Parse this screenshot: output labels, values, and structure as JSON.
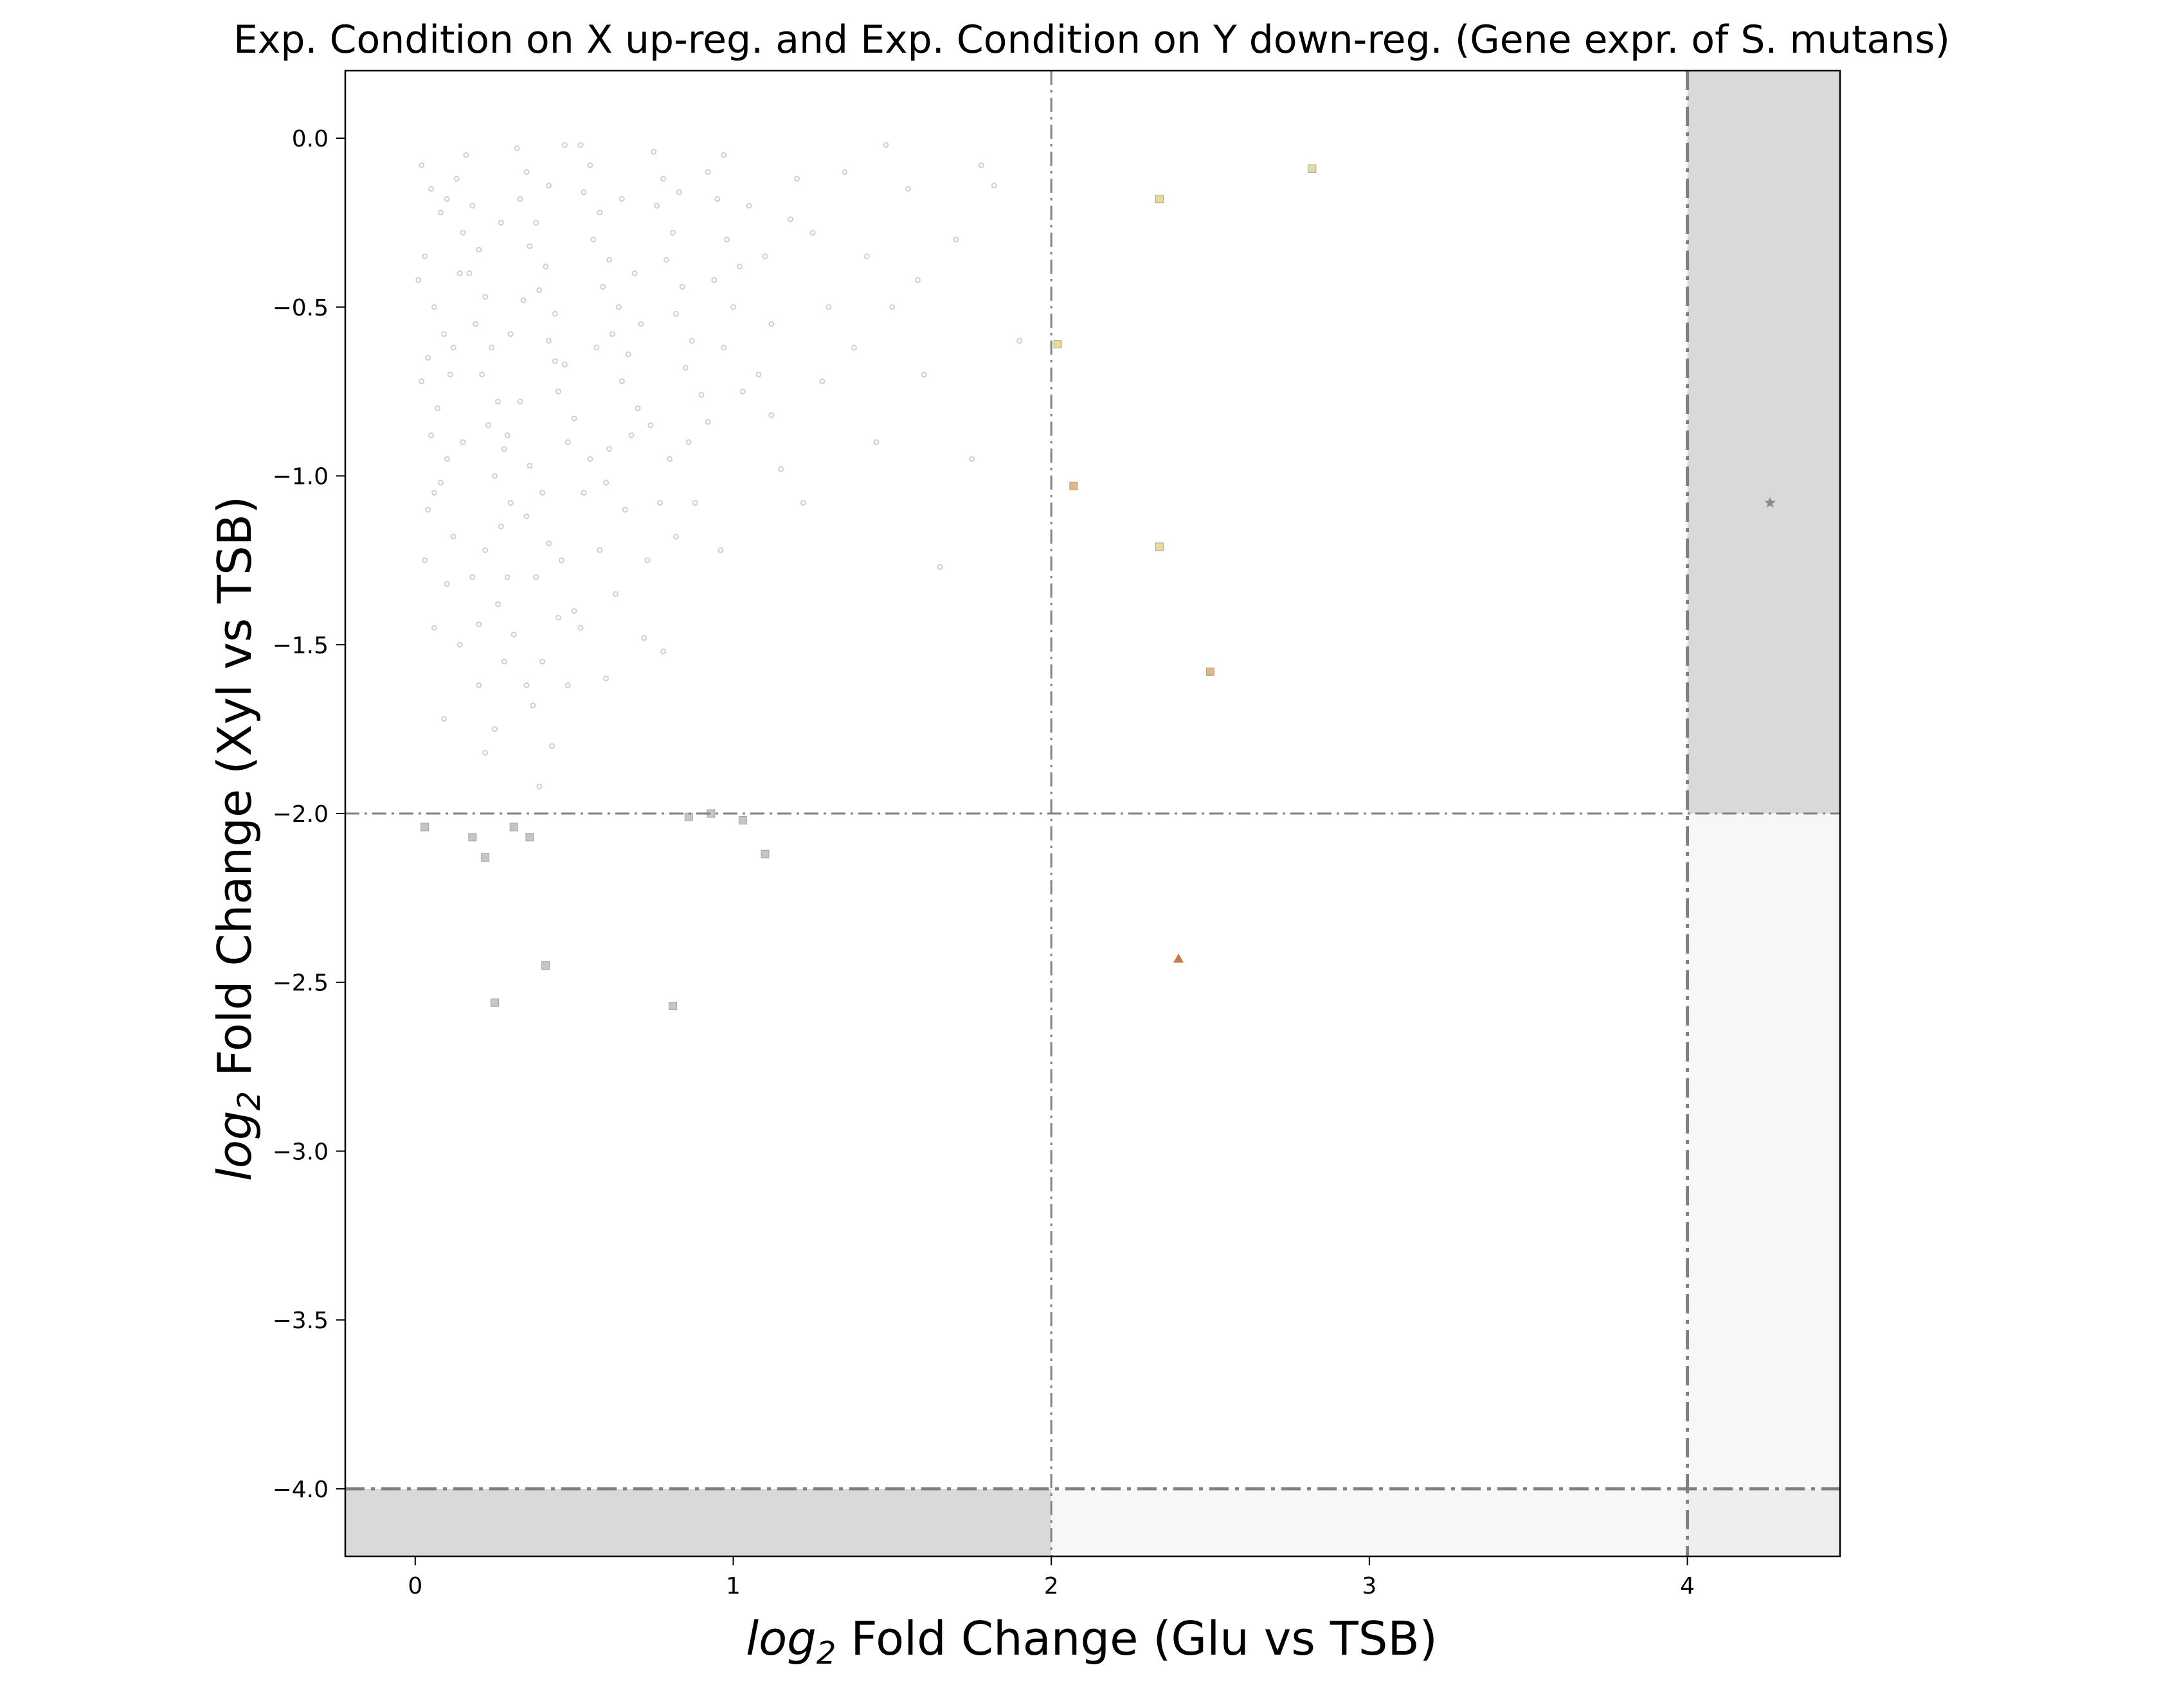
{
  "chart_data": {
    "type": "scatter",
    "title": "Exp. Condition on X up-reg. and Exp. Condition on Y down-reg. (Gene expr. of S. mutans)",
    "xlabel": {
      "prefix": "log",
      "sub": "2",
      "rest": " Fold Change (Glu vs TSB)"
    },
    "ylabel": {
      "prefix": "log",
      "sub": "2",
      "rest": " Fold Change (Xyl vs TSB)"
    },
    "xlim": [
      -0.22,
      4.48
    ],
    "ylim": [
      -4.2,
      0.2
    ],
    "xticks": [
      0,
      1,
      2,
      3,
      4
    ],
    "xtick_labels": [
      "0",
      "1",
      "2",
      "3",
      "4"
    ],
    "yticks": [
      0.0,
      -0.5,
      -1.0,
      -1.5,
      -2.0,
      -2.5,
      -3.0,
      -3.5,
      -4.0
    ],
    "ytick_labels": [
      "0.0",
      "−0.5",
      "−1.0",
      "−1.5",
      "−2.0",
      "−2.5",
      "−3.0",
      "−3.5",
      "−4.0"
    ],
    "grid": false,
    "thresholds": {
      "x_inner": 2,
      "x_outer": 4,
      "y_inner": -2,
      "y_outer": -4
    },
    "shaded_regions": [
      {
        "x": [
          4,
          4.48
        ],
        "y": [
          -2,
          0.2
        ],
        "color": "#d9d9d9"
      },
      {
        "x": [
          4,
          4.48
        ],
        "y": [
          -4,
          -2
        ],
        "color": "#f7f7f7"
      },
      {
        "x": [
          4,
          4.48
        ],
        "y": [
          -4.2,
          -4
        ],
        "color": "#eeeeee"
      },
      {
        "x": [
          -0.22,
          2
        ],
        "y": [
          -4.2,
          -4
        ],
        "color": "#d9d9d9"
      },
      {
        "x": [
          2,
          4
        ],
        "y": [
          -4.2,
          -4
        ],
        "color": "#f7f7f7"
      }
    ],
    "colors": {
      "background_points": "#cfcfcf",
      "gray_squares": "#bfbfbf",
      "yellow_squares": "#e4d98a",
      "orange_squares": "#e0b070",
      "triangle": "#c87a4a",
      "star": "#8a8a8a",
      "dashed_lines": "#808080"
    },
    "series": [
      {
        "marker": "dot",
        "color": "#cfcfcf",
        "points": [
          [
            0.02,
            -0.08
          ],
          [
            0.05,
            -0.15
          ],
          [
            0.08,
            -0.22
          ],
          [
            0.03,
            -0.35
          ],
          [
            0.01,
            -0.42
          ],
          [
            0.06,
            -0.5
          ],
          [
            0.09,
            -0.58
          ],
          [
            0.04,
            -0.65
          ],
          [
            0.02,
            -0.72
          ],
          [
            0.07,
            -0.8
          ],
          [
            0.05,
            -0.88
          ],
          [
            0.1,
            -0.95
          ],
          [
            0.08,
            -1.02
          ],
          [
            0.04,
            -1.1
          ],
          [
            0.12,
            -1.18
          ],
          [
            0.03,
            -1.25
          ],
          [
            0.1,
            -1.32
          ],
          [
            0.06,
            -1.45
          ],
          [
            0.14,
            -1.5
          ],
          [
            0.09,
            -1.72
          ],
          [
            0.16,
            -0.05
          ],
          [
            0.13,
            -0.12
          ],
          [
            0.18,
            -0.2
          ],
          [
            0.15,
            -0.28
          ],
          [
            0.2,
            -0.33
          ],
          [
            0.17,
            -0.4
          ],
          [
            0.22,
            -0.47
          ],
          [
            0.19,
            -0.55
          ],
          [
            0.24,
            -0.62
          ],
          [
            0.21,
            -0.7
          ],
          [
            0.26,
            -0.78
          ],
          [
            0.23,
            -0.85
          ],
          [
            0.28,
            -0.92
          ],
          [
            0.25,
            -1.0
          ],
          [
            0.3,
            -1.08
          ],
          [
            0.27,
            -1.15
          ],
          [
            0.22,
            -1.22
          ],
          [
            0.29,
            -1.3
          ],
          [
            0.26,
            -1.38
          ],
          [
            0.31,
            -1.47
          ],
          [
            0.28,
            -1.55
          ],
          [
            0.2,
            -1.62
          ],
          [
            0.25,
            -1.75
          ],
          [
            0.22,
            -1.82
          ],
          [
            0.32,
            -0.03
          ],
          [
            0.35,
            -0.1
          ],
          [
            0.33,
            -0.18
          ],
          [
            0.38,
            -0.25
          ],
          [
            0.36,
            -0.32
          ],
          [
            0.41,
            -0.38
          ],
          [
            0.39,
            -0.45
          ],
          [
            0.44,
            -0.52
          ],
          [
            0.42,
            -0.6
          ],
          [
            0.47,
            -0.67
          ],
          [
            0.45,
            -0.75
          ],
          [
            0.5,
            -0.83
          ],
          [
            0.48,
            -0.9
          ],
          [
            0.36,
            -0.97
          ],
          [
            0.4,
            -1.05
          ],
          [
            0.35,
            -1.12
          ],
          [
            0.42,
            -1.2
          ],
          [
            0.38,
            -1.3
          ],
          [
            0.45,
            -1.42
          ],
          [
            0.4,
            -1.55
          ],
          [
            0.48,
            -1.62
          ],
          [
            0.37,
            -1.68
          ],
          [
            0.43,
            -1.8
          ],
          [
            0.39,
            -1.92
          ],
          [
            0.52,
            -0.02
          ],
          [
            0.55,
            -0.08
          ],
          [
            0.53,
            -0.16
          ],
          [
            0.58,
            -0.22
          ],
          [
            0.56,
            -0.3
          ],
          [
            0.61,
            -0.36
          ],
          [
            0.59,
            -0.44
          ],
          [
            0.64,
            -0.5
          ],
          [
            0.62,
            -0.58
          ],
          [
            0.67,
            -0.64
          ],
          [
            0.65,
            -0.72
          ],
          [
            0.7,
            -0.8
          ],
          [
            0.68,
            -0.88
          ],
          [
            0.55,
            -0.95
          ],
          [
            0.6,
            -1.02
          ],
          [
            0.66,
            -1.1
          ],
          [
            0.58,
            -1.22
          ],
          [
            0.63,
            -1.35
          ],
          [
            0.72,
            -1.48
          ],
          [
            0.75,
            -0.04
          ],
          [
            0.78,
            -0.12
          ],
          [
            0.76,
            -0.2
          ],
          [
            0.81,
            -0.28
          ],
          [
            0.79,
            -0.36
          ],
          [
            0.84,
            -0.44
          ],
          [
            0.82,
            -0.52
          ],
          [
            0.87,
            -0.6
          ],
          [
            0.85,
            -0.68
          ],
          [
            0.9,
            -0.76
          ],
          [
            0.74,
            -0.85
          ],
          [
            0.8,
            -0.95
          ],
          [
            0.77,
            -1.08
          ],
          [
            0.82,
            -1.18
          ],
          [
            0.78,
            -1.52
          ],
          [
            0.92,
            -0.1
          ],
          [
            0.95,
            -0.18
          ],
          [
            0.98,
            -0.3
          ],
          [
            0.94,
            -0.42
          ],
          [
            1.0,
            -0.5
          ],
          [
            0.97,
            -0.62
          ],
          [
            1.03,
            -0.75
          ],
          [
            0.96,
            -1.22
          ],
          [
            1.05,
            -0.2
          ],
          [
            1.1,
            -0.35
          ],
          [
            1.08,
            -0.7
          ],
          [
            1.12,
            -0.55
          ],
          [
            1.15,
            -0.98
          ],
          [
            1.2,
            -0.12
          ],
          [
            1.25,
            -0.28
          ],
          [
            1.3,
            -0.5
          ],
          [
            1.22,
            -1.08
          ],
          [
            1.35,
            -0.1
          ],
          [
            1.42,
            -0.35
          ],
          [
            1.48,
            -0.02
          ],
          [
            1.45,
            -0.9
          ],
          [
            1.5,
            -0.5
          ],
          [
            1.55,
            -0.15
          ],
          [
            1.6,
            -0.7
          ],
          [
            1.65,
            -1.27
          ],
          [
            1.7,
            -0.3
          ],
          [
            1.75,
            -0.95
          ],
          [
            1.82,
            -0.14
          ],
          [
            1.9,
            -0.6
          ],
          [
            0.12,
            -0.62
          ],
          [
            0.15,
            -0.9
          ],
          [
            0.18,
            -1.3
          ],
          [
            0.3,
            -0.58
          ],
          [
            0.33,
            -0.78
          ],
          [
            0.46,
            -1.25
          ],
          [
            0.52,
            -1.45
          ],
          [
            0.57,
            -0.62
          ],
          [
            0.69,
            -0.4
          ],
          [
            0.73,
            -1.25
          ],
          [
            0.86,
            -0.9
          ],
          [
            0.6,
            -1.6
          ],
          [
            0.5,
            -1.4
          ],
          [
            1.18,
            -0.24
          ],
          [
            1.28,
            -0.72
          ],
          [
            0.88,
            -1.08
          ],
          [
            0.92,
            -0.84
          ],
          [
            1.02,
            -0.38
          ],
          [
            0.65,
            -0.18
          ],
          [
            0.42,
            -0.14
          ],
          [
            0.27,
            -0.25
          ],
          [
            0.14,
            -0.4
          ],
          [
            0.1,
            -0.18
          ],
          [
            0.47,
            -0.02
          ],
          [
            0.61,
            -0.92
          ],
          [
            0.35,
            -1.62
          ],
          [
            0.2,
            -1.44
          ],
          [
            0.06,
            -1.05
          ],
          [
            0.11,
            -0.7
          ],
          [
            0.34,
            -0.48
          ],
          [
            0.44,
            -0.66
          ],
          [
            0.29,
            -0.88
          ],
          [
            0.53,
            -1.05
          ],
          [
            0.71,
            -0.55
          ],
          [
            0.83,
            -0.16
          ],
          [
            0.97,
            -0.05
          ],
          [
            1.12,
            -0.82
          ],
          [
            1.38,
            -0.62
          ],
          [
            1.58,
            -0.42
          ],
          [
            1.78,
            -0.08
          ]
        ]
      },
      {
        "marker": "square",
        "color": "#bfbfbf",
        "points": [
          [
            0.03,
            -2.04
          ],
          [
            0.18,
            -2.07
          ],
          [
            0.22,
            -2.13
          ],
          [
            0.31,
            -2.04
          ],
          [
            0.36,
            -2.07
          ],
          [
            0.41,
            -2.45
          ],
          [
            0.25,
            -2.56
          ],
          [
            0.81,
            -2.57
          ],
          [
            0.86,
            -2.01
          ],
          [
            0.93,
            -2.0
          ],
          [
            1.03,
            -2.02
          ],
          [
            1.1,
            -2.12
          ]
        ]
      },
      {
        "marker": "square",
        "color": "#e4d98a",
        "points": [
          [
            2.34,
            -0.18
          ],
          [
            2.82,
            -0.09
          ],
          [
            2.02,
            -0.61
          ],
          [
            2.34,
            -1.21
          ]
        ]
      },
      {
        "marker": "square",
        "color": "#e0b070",
        "points": [
          [
            2.07,
            -1.03
          ],
          [
            2.5,
            -1.58
          ]
        ]
      },
      {
        "marker": "triangle",
        "color": "#c87a4a",
        "points": [
          [
            2.4,
            -2.43
          ]
        ]
      },
      {
        "marker": "star",
        "color": "#8a8a8a",
        "points": [
          [
            4.26,
            -1.08
          ]
        ]
      }
    ]
  }
}
